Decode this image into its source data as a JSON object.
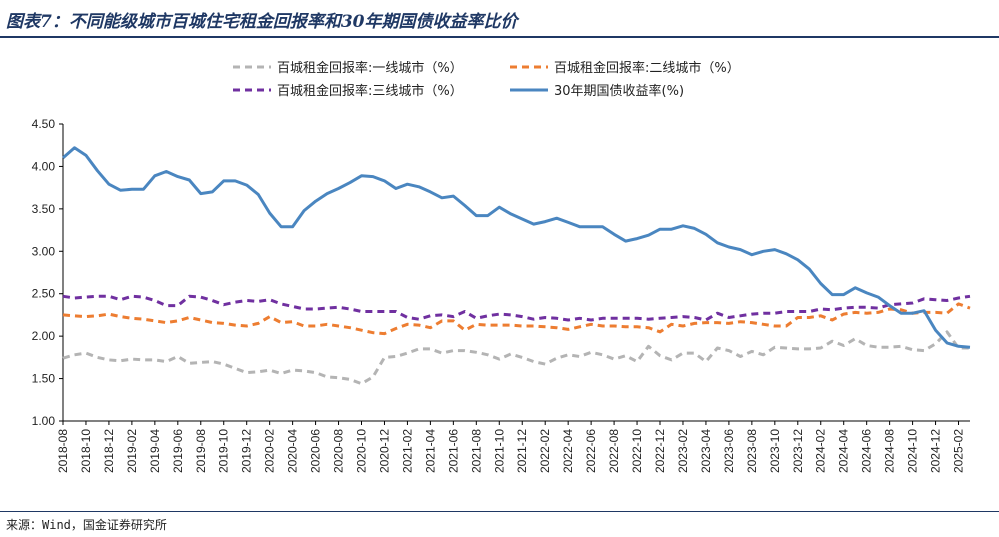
{
  "header": {
    "title": "图表7：不同能级城市百城住宅租金回报率和30年期国债收益率比价"
  },
  "footer": {
    "source": "来源：Wind，国金证券研究所"
  },
  "chart_data": {
    "type": "line",
    "title": "图表7：不同能级城市百城住宅租金回报率和30年期国债收益率比价",
    "xlabel": "",
    "ylabel": "",
    "ylim": [
      1.0,
      4.5
    ],
    "yticks": [
      "1.00",
      "1.50",
      "2.00",
      "2.50",
      "3.00",
      "3.50",
      "4.00",
      "4.50"
    ],
    "ytick_values": [
      1.0,
      1.5,
      2.0,
      2.5,
      3.0,
      3.5,
      4.0,
      4.5
    ],
    "x_start": "2018-08",
    "x_end": "2025-03",
    "xticks": [
      "2018-08",
      "2018-10",
      "2018-12",
      "2019-02",
      "2019-04",
      "2019-06",
      "2019-08",
      "2019-10",
      "2019-12",
      "2020-02",
      "2020-04",
      "2020-06",
      "2020-08",
      "2020-10",
      "2020-12",
      "2021-02",
      "2021-04",
      "2021-06",
      "2021-08",
      "2021-10",
      "2021-12",
      "2022-02",
      "2022-04",
      "2022-06",
      "2022-08",
      "2022-10",
      "2022-12",
      "2023-02",
      "2023-04",
      "2023-06",
      "2023-08",
      "2023-10",
      "2023-12",
      "2024-02",
      "2024-04",
      "2024-06",
      "2024-08",
      "2024-10",
      "2024-12",
      "2025-02"
    ],
    "legend_position": "top",
    "series": [
      {
        "name": "百城租金回报率:一线城市（%）",
        "color": "#b4b4b4",
        "dash": true,
        "x": [
          "2018-08",
          "2018-09",
          "2018-10",
          "2018-11",
          "2018-12",
          "2019-01",
          "2019-02",
          "2019-03",
          "2019-04",
          "2019-05",
          "2019-06",
          "2019-07",
          "2019-08",
          "2019-09",
          "2019-10",
          "2019-11",
          "2019-12",
          "2020-01",
          "2020-02",
          "2020-03",
          "2020-04",
          "2020-05",
          "2020-06",
          "2020-07",
          "2020-08",
          "2020-09",
          "2020-10",
          "2020-11",
          "2020-12",
          "2021-01",
          "2021-02",
          "2021-03",
          "2021-04",
          "2021-05",
          "2021-06",
          "2021-07",
          "2021-08",
          "2021-09",
          "2021-10",
          "2021-11",
          "2021-12",
          "2022-01",
          "2022-02",
          "2022-03",
          "2022-04",
          "2022-05",
          "2022-06",
          "2022-07",
          "2022-08",
          "2022-09",
          "2022-10",
          "2022-11",
          "2022-12",
          "2023-01",
          "2023-02",
          "2023-03",
          "2023-04",
          "2023-05",
          "2023-06",
          "2023-07",
          "2023-08",
          "2023-09",
          "2023-10",
          "2023-11",
          "2023-12",
          "2024-01",
          "2024-02",
          "2024-03",
          "2024-04",
          "2024-05",
          "2024-06",
          "2024-07",
          "2024-08",
          "2024-09",
          "2024-10",
          "2024-11",
          "2024-12",
          "2025-01",
          "2025-02",
          "2025-03"
        ],
        "values": [
          1.74,
          1.78,
          1.8,
          1.75,
          1.72,
          1.71,
          1.73,
          1.72,
          1.72,
          1.7,
          1.76,
          1.68,
          1.69,
          1.7,
          1.67,
          1.62,
          1.57,
          1.58,
          1.6,
          1.56,
          1.6,
          1.59,
          1.57,
          1.52,
          1.51,
          1.49,
          1.44,
          1.52,
          1.75,
          1.76,
          1.8,
          1.85,
          1.85,
          1.8,
          1.83,
          1.83,
          1.81,
          1.78,
          1.73,
          1.79,
          1.75,
          1.7,
          1.67,
          1.74,
          1.78,
          1.76,
          1.81,
          1.78,
          1.73,
          1.77,
          1.7,
          1.88,
          1.77,
          1.72,
          1.8,
          1.8,
          1.7,
          1.86,
          1.83,
          1.76,
          1.82,
          1.78,
          1.87,
          1.86,
          1.85,
          1.85,
          1.86,
          1.94,
          1.89,
          1.97,
          1.89,
          1.87,
          1.87,
          1.88,
          1.84,
          1.83,
          1.91,
          2.05,
          1.86,
          1.86
        ]
      },
      {
        "name": "百城租金回报率:二线城市（%）",
        "color": "#ed7d31",
        "dash": true,
        "x": [
          "2018-08",
          "2018-09",
          "2018-10",
          "2018-11",
          "2018-12",
          "2019-01",
          "2019-02",
          "2019-03",
          "2019-04",
          "2019-05",
          "2019-06",
          "2019-07",
          "2019-08",
          "2019-09",
          "2019-10",
          "2019-11",
          "2019-12",
          "2020-01",
          "2020-02",
          "2020-03",
          "2020-04",
          "2020-05",
          "2020-06",
          "2020-07",
          "2020-08",
          "2020-09",
          "2020-10",
          "2020-11",
          "2020-12",
          "2021-01",
          "2021-02",
          "2021-03",
          "2021-04",
          "2021-05",
          "2021-06",
          "2021-07",
          "2021-08",
          "2021-09",
          "2021-10",
          "2021-11",
          "2021-12",
          "2022-01",
          "2022-02",
          "2022-03",
          "2022-04",
          "2022-05",
          "2022-06",
          "2022-07",
          "2022-08",
          "2022-09",
          "2022-10",
          "2022-11",
          "2022-12",
          "2023-01",
          "2023-02",
          "2023-03",
          "2023-04",
          "2023-05",
          "2023-06",
          "2023-07",
          "2023-08",
          "2023-09",
          "2023-10",
          "2023-11",
          "2023-12",
          "2024-01",
          "2024-02",
          "2024-03",
          "2024-04",
          "2024-05",
          "2024-06",
          "2024-07",
          "2024-08",
          "2024-09",
          "2024-10",
          "2024-11",
          "2024-12",
          "2025-01",
          "2025-02",
          "2025-03"
        ],
        "values": [
          2.25,
          2.24,
          2.23,
          2.24,
          2.26,
          2.23,
          2.21,
          2.2,
          2.18,
          2.16,
          2.18,
          2.22,
          2.19,
          2.16,
          2.15,
          2.13,
          2.12,
          2.15,
          2.23,
          2.16,
          2.17,
          2.12,
          2.12,
          2.14,
          2.12,
          2.1,
          2.07,
          2.04,
          2.03,
          2.09,
          2.14,
          2.13,
          2.1,
          2.18,
          2.18,
          2.07,
          2.14,
          2.13,
          2.13,
          2.13,
          2.12,
          2.12,
          2.11,
          2.1,
          2.08,
          2.11,
          2.14,
          2.12,
          2.12,
          2.11,
          2.11,
          2.1,
          2.05,
          2.14,
          2.12,
          2.15,
          2.16,
          2.16,
          2.15,
          2.17,
          2.16,
          2.14,
          2.12,
          2.12,
          2.22,
          2.22,
          2.24,
          2.19,
          2.26,
          2.28,
          2.27,
          2.28,
          2.32,
          2.31,
          2.27,
          2.28,
          2.28,
          2.27,
          2.38,
          2.33
        ]
      },
      {
        "name": "百城租金回报率:三线城市（%）",
        "color": "#7030a0",
        "dash": true,
        "x": [
          "2018-08",
          "2018-09",
          "2018-10",
          "2018-11",
          "2018-12",
          "2019-01",
          "2019-02",
          "2019-03",
          "2019-04",
          "2019-05",
          "2019-06",
          "2019-07",
          "2019-08",
          "2019-09",
          "2019-10",
          "2019-11",
          "2019-12",
          "2020-01",
          "2020-02",
          "2020-03",
          "2020-04",
          "2020-05",
          "2020-06",
          "2020-07",
          "2020-08",
          "2020-09",
          "2020-10",
          "2020-11",
          "2020-12",
          "2021-01",
          "2021-02",
          "2021-03",
          "2021-04",
          "2021-05",
          "2021-06",
          "2021-07",
          "2021-08",
          "2021-09",
          "2021-10",
          "2021-11",
          "2021-12",
          "2022-01",
          "2022-02",
          "2022-03",
          "2022-04",
          "2022-05",
          "2022-06",
          "2022-07",
          "2022-08",
          "2022-09",
          "2022-10",
          "2022-11",
          "2022-12",
          "2023-01",
          "2023-02",
          "2023-03",
          "2023-04",
          "2023-05",
          "2023-06",
          "2023-07",
          "2023-08",
          "2023-09",
          "2023-10",
          "2023-11",
          "2023-12",
          "2024-01",
          "2024-02",
          "2024-03",
          "2024-04",
          "2024-05",
          "2024-06",
          "2024-07",
          "2024-08",
          "2024-09",
          "2024-10",
          "2024-11",
          "2024-12",
          "2025-01",
          "2025-02",
          "2025-03"
        ],
        "values": [
          2.47,
          2.45,
          2.46,
          2.47,
          2.47,
          2.43,
          2.47,
          2.46,
          2.42,
          2.36,
          2.36,
          2.47,
          2.46,
          2.42,
          2.37,
          2.4,
          2.42,
          2.41,
          2.43,
          2.38,
          2.35,
          2.32,
          2.32,
          2.33,
          2.34,
          2.32,
          2.29,
          2.29,
          2.29,
          2.29,
          2.22,
          2.2,
          2.24,
          2.25,
          2.23,
          2.29,
          2.21,
          2.24,
          2.26,
          2.25,
          2.23,
          2.2,
          2.22,
          2.21,
          2.19,
          2.21,
          2.19,
          2.21,
          2.21,
          2.21,
          2.21,
          2.2,
          2.21,
          2.22,
          2.23,
          2.22,
          2.19,
          2.27,
          2.22,
          2.24,
          2.26,
          2.27,
          2.27,
          2.29,
          2.29,
          2.29,
          2.32,
          2.31,
          2.33,
          2.34,
          2.34,
          2.33,
          2.37,
          2.38,
          2.39,
          2.44,
          2.43,
          2.42,
          2.45,
          2.47
        ]
      },
      {
        "name": "30年期国债收益率(%)",
        "color": "#4a86c0",
        "dash": false,
        "x": [
          "2018-08",
          "2018-09",
          "2018-10",
          "2018-11",
          "2018-12",
          "2019-01",
          "2019-02",
          "2019-03",
          "2019-04",
          "2019-05",
          "2019-06",
          "2019-07",
          "2019-08",
          "2019-09",
          "2019-10",
          "2019-11",
          "2019-12",
          "2020-01",
          "2020-02",
          "2020-03",
          "2020-04",
          "2020-05",
          "2020-06",
          "2020-07",
          "2020-08",
          "2020-09",
          "2020-10",
          "2020-11",
          "2020-12",
          "2021-01",
          "2021-02",
          "2021-03",
          "2021-04",
          "2021-05",
          "2021-06",
          "2021-07",
          "2021-08",
          "2021-09",
          "2021-10",
          "2021-11",
          "2021-12",
          "2022-01",
          "2022-02",
          "2022-03",
          "2022-04",
          "2022-05",
          "2022-06",
          "2022-07",
          "2022-08",
          "2022-09",
          "2022-10",
          "2022-11",
          "2022-12",
          "2023-01",
          "2023-02",
          "2023-03",
          "2023-04",
          "2023-05",
          "2023-06",
          "2023-07",
          "2023-08",
          "2023-09",
          "2023-10",
          "2023-11",
          "2023-12",
          "2024-01",
          "2024-02",
          "2024-03",
          "2024-04",
          "2024-05",
          "2024-06",
          "2024-07",
          "2024-08",
          "2024-09",
          "2024-10",
          "2024-11",
          "2024-12",
          "2025-01",
          "2025-02",
          "2025-03"
        ],
        "values": [
          4.1,
          4.22,
          4.13,
          3.95,
          3.79,
          3.72,
          3.73,
          3.73,
          3.89,
          3.94,
          3.88,
          3.84,
          3.68,
          3.7,
          3.83,
          3.83,
          3.78,
          3.67,
          3.45,
          3.29,
          3.29,
          3.48,
          3.59,
          3.68,
          3.74,
          3.81,
          3.89,
          3.88,
          3.83,
          3.74,
          3.79,
          3.76,
          3.7,
          3.63,
          3.65,
          3.54,
          3.42,
          3.42,
          3.52,
          3.44,
          3.38,
          3.32,
          3.35,
          3.39,
          3.34,
          3.29,
          3.29,
          3.29,
          3.2,
          3.12,
          3.15,
          3.19,
          3.26,
          3.26,
          3.3,
          3.27,
          3.2,
          3.1,
          3.05,
          3.02,
          2.96,
          3.0,
          3.02,
          2.97,
          2.9,
          2.79,
          2.62,
          2.49,
          2.49,
          2.57,
          2.51,
          2.46,
          2.36,
          2.27,
          2.27,
          2.3,
          2.07,
          1.92,
          1.88,
          1.87
        ]
      }
    ]
  }
}
